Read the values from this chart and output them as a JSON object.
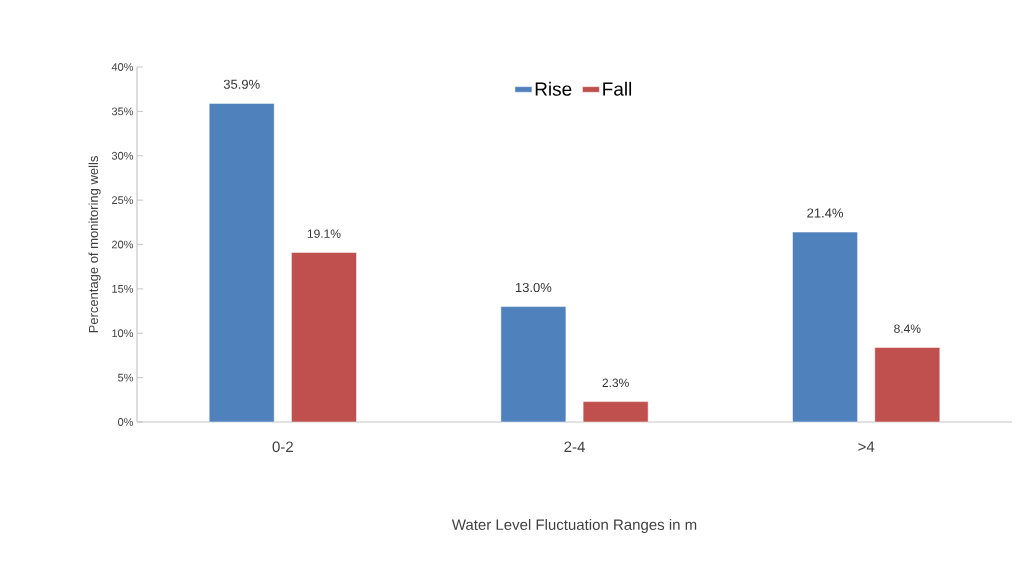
{
  "chart_data": {
    "type": "bar",
    "xlabel": "Water Level Fluctuation Ranges in m",
    "ylabel": "Percentage of monitoring wells",
    "categories": [
      "0-2",
      "2-4",
      ">4"
    ],
    "series": [
      {
        "name": "Rise",
        "color": "#4f81bd",
        "values": [
          35.9,
          13.0,
          21.4
        ],
        "value_labels": [
          "35.9%",
          "13.0%",
          "21.4%"
        ]
      },
      {
        "name": "Fall",
        "color": "#c0504d",
        "values": [
          19.1,
          2.3,
          8.4
        ],
        "value_labels": [
          "19.1%",
          "2.3%",
          "8.4%"
        ]
      }
    ],
    "ylim": [
      0,
      40
    ],
    "yticks": [
      {
        "value": 0,
        "label": "0%"
      },
      {
        "value": 5,
        "label": "5%"
      },
      {
        "value": 10,
        "label": "10%"
      },
      {
        "value": 15,
        "label": "15%"
      },
      {
        "value": 20,
        "label": "20%"
      },
      {
        "value": 25,
        "label": "25%"
      },
      {
        "value": 30,
        "label": "30%"
      },
      {
        "value": 35,
        "label": "35%"
      },
      {
        "value": 40,
        "label": "40%"
      }
    ],
    "legend": "top"
  }
}
